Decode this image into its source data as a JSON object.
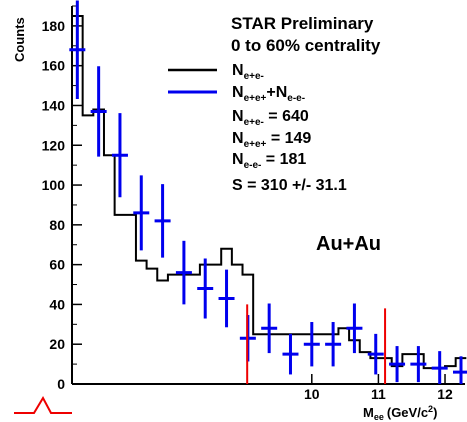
{
  "chart_data": {
    "type": "histogram",
    "xlabel": "M",
    "xlabel_sub": "ee",
    "xlabel_unit": "(GeV/c",
    "xlabel_unit_sup": "2",
    "xlabel_unit_close": ")",
    "ylabel": "Counts",
    "xlim": [
      6.4,
      12.3
    ],
    "ylim": [
      0,
      190
    ],
    "x_ticks": [
      {
        "value": 10,
        "label": "10"
      },
      {
        "value": 11,
        "label": "11"
      },
      {
        "value": 12,
        "label": "12"
      }
    ],
    "y_ticks": [
      {
        "value": 0,
        "label": "0"
      },
      {
        "value": 20,
        "label": "20"
      },
      {
        "value": 40,
        "label": "40"
      },
      {
        "value": 60,
        "label": "60"
      },
      {
        "value": 80,
        "label": "80"
      },
      {
        "value": 100,
        "label": "100"
      },
      {
        "value": 120,
        "label": "120"
      },
      {
        "value": 140,
        "label": "140"
      },
      {
        "value": 160,
        "label": "160"
      },
      {
        "value": 180,
        "label": "180"
      }
    ],
    "annotations": {
      "header1": "STAR Preliminary",
      "header2": "0 to 60% centrality",
      "legend1_main": "N",
      "legend1_sub": "e+e-",
      "legend2_main1": "N",
      "legend2_sub1": "e+e+",
      "legend2_plus": "+N",
      "legend2_sub2": "e-e-",
      "stat1_main": "N",
      "stat1_sub": "e+e-",
      "stat1_val": " = 640",
      "stat2_main": "N",
      "stat2_sub": "e+e+",
      "stat2_val": " = 149",
      "stat3_main": "N",
      "stat3_sub": "e-e-",
      "stat3_val": " = 181",
      "stat4": "S = 310 +/- 31.1",
      "system": "Au+Au"
    },
    "colors": {
      "unlike_sign": "#000000",
      "like_sign": "#0000ee",
      "marker": "#ee0000"
    },
    "series": [
      {
        "kind": "step",
        "edges": [
          6.4,
          6.56,
          6.72,
          6.88,
          7.04,
          7.2,
          7.36,
          7.52,
          7.68,
          7.84,
          8.0,
          8.16,
          8.32,
          8.48,
          8.64,
          8.8,
          8.96,
          9.12,
          9.28,
          9.44,
          9.6,
          9.76,
          9.92,
          10.08,
          10.24,
          10.4,
          10.56,
          10.72,
          10.88,
          11.04,
          11.2,
          11.36,
          11.52,
          11.68,
          11.84,
          12.0,
          12.16,
          12.32
        ],
        "values": [
          185,
          135,
          138,
          115,
          85,
          85,
          62,
          58,
          52,
          55,
          55,
          55,
          60,
          60,
          68,
          60,
          55,
          25,
          25,
          25,
          25,
          25,
          25,
          25,
          25,
          28,
          22,
          16,
          13,
          13,
          9,
          15,
          15,
          8,
          8,
          9,
          13
        ]
      },
      {
        "kind": "points",
        "x": [
          6.48,
          6.8,
          7.12,
          7.44,
          7.76,
          8.08,
          8.4,
          8.72,
          9.04,
          9.36,
          9.68,
          10.0,
          10.32,
          10.64,
          10.96,
          11.28,
          11.6,
          11.92,
          12.24
        ],
        "y": [
          168,
          137,
          115,
          86,
          82,
          56,
          48,
          43,
          23,
          28,
          15,
          20,
          20,
          28,
          15,
          10,
          10,
          8,
          6
        ]
      }
    ],
    "markers": [
      {
        "x": 9.03,
        "y_top": 40
      },
      {
        "x": 11.1,
        "y_top": 38
      }
    ]
  }
}
